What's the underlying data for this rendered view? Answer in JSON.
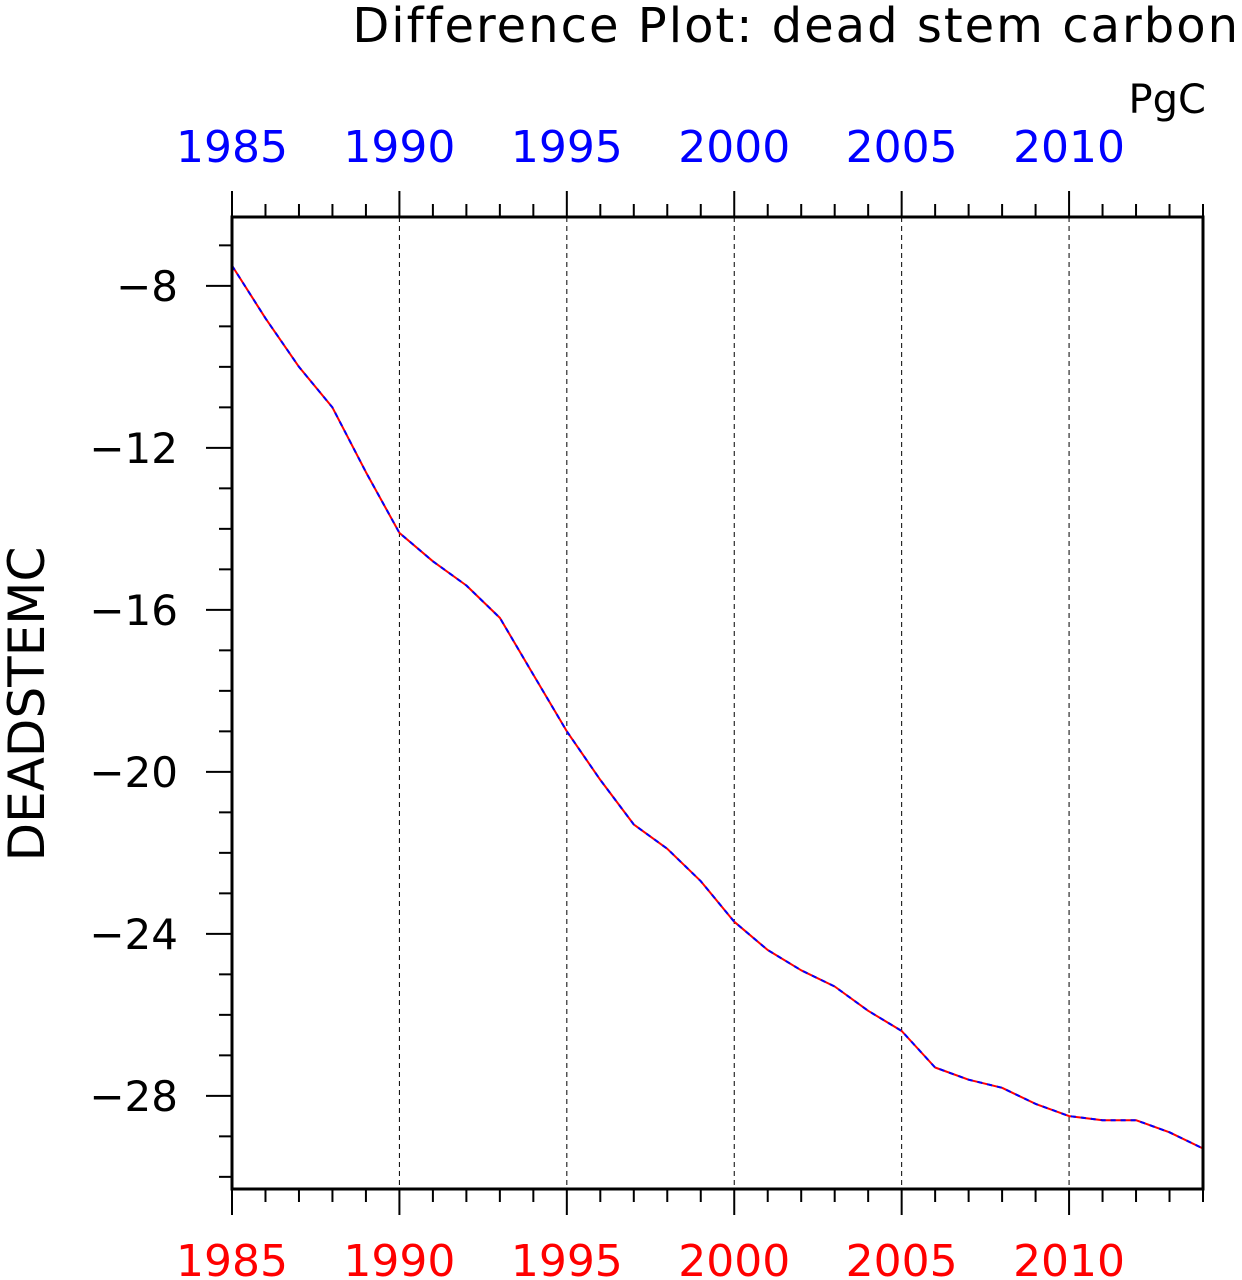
{
  "chart_data": {
    "type": "line",
    "title": "Difference Plot: dead stem carbon",
    "units": "PgC",
    "ylabel": "DEADSTEMC",
    "xlabel": "",
    "xlim": [
      1985,
      2014
    ],
    "ylim": [
      -30.3,
      -6.3
    ],
    "x_ticks_major": [
      1985,
      1990,
      1995,
      2000,
      2005,
      2010
    ],
    "x_tick_labels_top": [
      "1985",
      "1990",
      "1995",
      "2000",
      "2005",
      "2010"
    ],
    "x_tick_labels_bottom": [
      "1985",
      "1990",
      "1995",
      "2000",
      "2005",
      "2010"
    ],
    "y_ticks_major": [
      -8,
      -12,
      -16,
      -20,
      -24,
      -28
    ],
    "y_tick_labels": [
      "−8",
      "−12",
      "−16",
      "−20",
      "−24",
      "−28"
    ],
    "grid": "vertical dashed at major x ticks",
    "colors": {
      "top_axis_labels": "#0000ff",
      "bottom_axis_labels": "#ff0000",
      "line_primary": "#ff0000",
      "line_overlay": "#0000ff",
      "frame": "#000000"
    },
    "series": [
      {
        "color": "#ff0000",
        "style": "solid",
        "x": [
          1985,
          1986,
          1987,
          1988,
          1989,
          1990,
          1991,
          1992,
          1993,
          1994,
          1995,
          1996,
          1997,
          1998,
          1999,
          2000,
          2001,
          2002,
          2003,
          2004,
          2005,
          2006,
          2007,
          2008,
          2009,
          2010,
          2011,
          2012,
          2013,
          2014
        ],
        "values": [
          -7.5,
          -8.8,
          -10.0,
          -11.0,
          -12.6,
          -14.1,
          -14.8,
          -15.4,
          -16.2,
          -17.6,
          -19.0,
          -20.2,
          -21.3,
          -21.9,
          -22.7,
          -23.7,
          -24.4,
          -24.9,
          -25.3,
          -25.9,
          -26.4,
          -27.3,
          -27.6,
          -27.8,
          -28.2,
          -28.5,
          -28.6,
          -28.6,
          -28.9,
          -29.3
        ]
      },
      {
        "color": "#0000ff",
        "style": "dashed",
        "x": [
          1985,
          1986,
          1987,
          1988,
          1989,
          1990,
          1991,
          1992,
          1993,
          1994,
          1995,
          1996,
          1997,
          1998,
          1999,
          2000,
          2001,
          2002,
          2003,
          2004,
          2005,
          2006,
          2007,
          2008,
          2009,
          2010,
          2011,
          2012,
          2013,
          2014
        ],
        "values": [
          -7.5,
          -8.8,
          -10.0,
          -11.0,
          -12.6,
          -14.1,
          -14.8,
          -15.4,
          -16.2,
          -17.6,
          -19.0,
          -20.2,
          -21.3,
          -21.9,
          -22.7,
          -23.7,
          -24.4,
          -24.9,
          -25.3,
          -25.9,
          -26.4,
          -27.3,
          -27.6,
          -27.8,
          -28.2,
          -28.5,
          -28.6,
          -28.6,
          -28.9,
          -29.3
        ]
      }
    ]
  }
}
